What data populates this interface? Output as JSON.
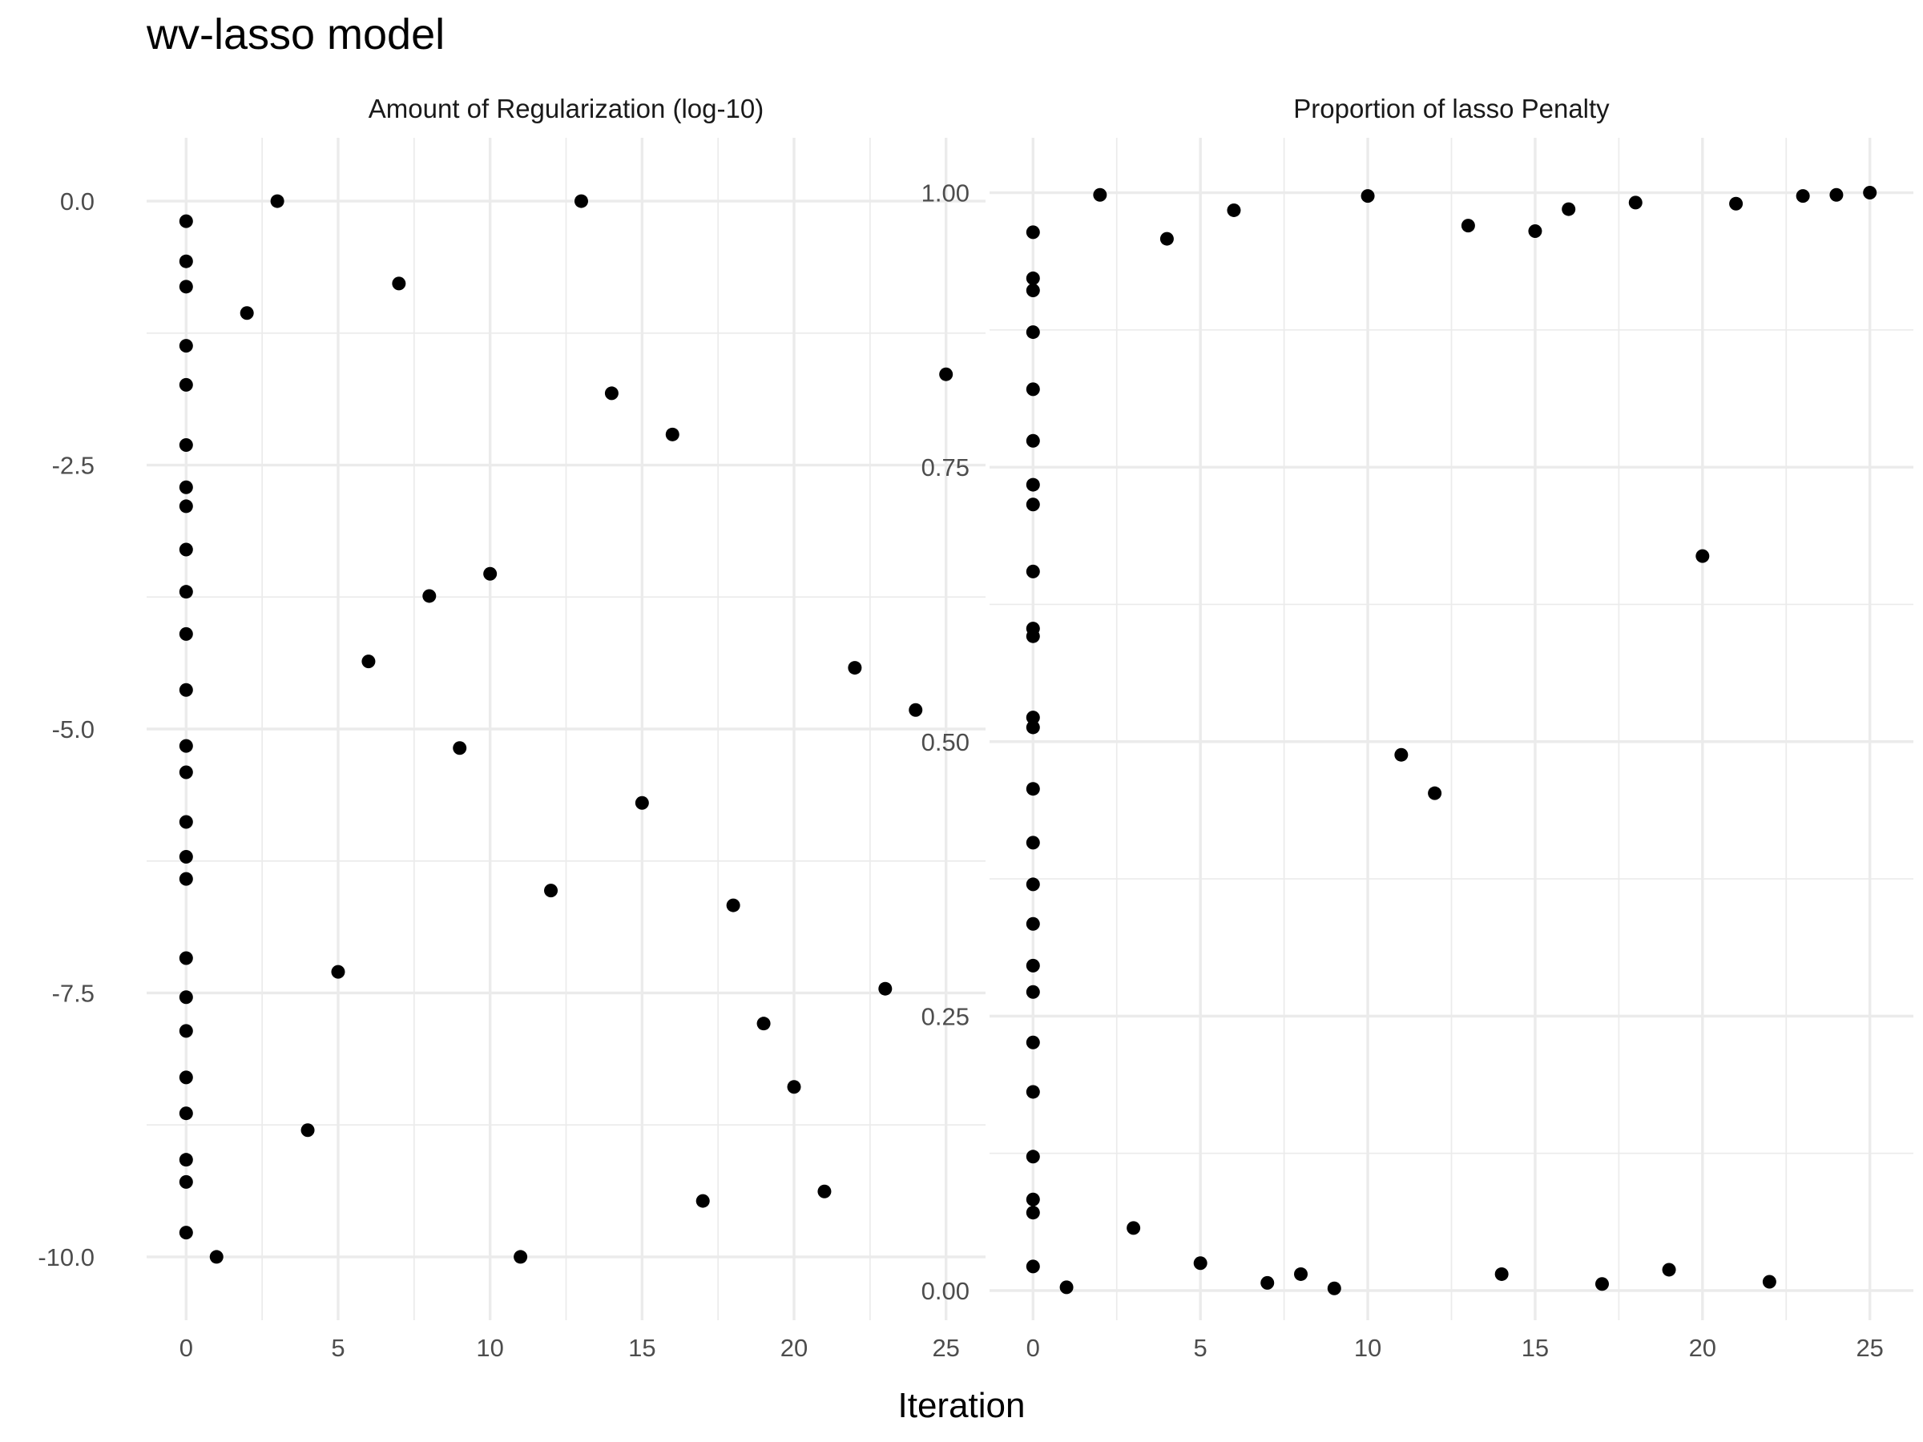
{
  "chart": {
    "title": "wv-lasso model",
    "xlabel": "Iteration"
  },
  "chart_data": [
    {
      "type": "scatter",
      "title": "Amount of Regularization (log-10)",
      "xlabel": "Iteration",
      "xlim": [
        -1.3,
        26.3
      ],
      "ylim": [
        -10.6,
        0.6
      ],
      "xticks": [
        0,
        5,
        10,
        15,
        20,
        25
      ],
      "xtick_labels": [
        "0",
        "5",
        "10",
        "15",
        "20",
        "25"
      ],
      "yticks": [
        0,
        -2.5,
        -5,
        -7.5,
        -10
      ],
      "ytick_labels": [
        "0.0",
        "-2.5",
        "-5.0",
        "-7.5",
        "-10.0"
      ],
      "grid": true,
      "point_color": "#000000",
      "points": [
        [
          0,
          -0.19
        ],
        [
          0,
          -0.57
        ],
        [
          0,
          -0.81
        ],
        [
          0,
          -1.37
        ],
        [
          0,
          -1.74
        ],
        [
          0,
          -2.31
        ],
        [
          0,
          -2.71
        ],
        [
          0,
          -2.89
        ],
        [
          0,
          -3.3
        ],
        [
          0,
          -3.7
        ],
        [
          0,
          -4.1
        ],
        [
          0,
          -4.63
        ],
        [
          0,
          -5.16
        ],
        [
          0,
          -5.41
        ],
        [
          0,
          -5.88
        ],
        [
          0,
          -6.21
        ],
        [
          0,
          -6.42
        ],
        [
          0,
          -7.17
        ],
        [
          0,
          -7.54
        ],
        [
          0,
          -7.86
        ],
        [
          0,
          -8.3
        ],
        [
          0,
          -8.64
        ],
        [
          0,
          -9.08
        ],
        [
          0,
          -9.29
        ],
        [
          0,
          -9.77
        ],
        [
          1,
          -10.0
        ],
        [
          2,
          -1.06
        ],
        [
          3,
          0.0
        ],
        [
          4,
          -8.8
        ],
        [
          5,
          -7.3
        ],
        [
          6,
          -4.36
        ],
        [
          7,
          -0.78
        ],
        [
          8,
          -3.74
        ],
        [
          9,
          -5.18
        ],
        [
          10,
          -3.53
        ],
        [
          11,
          -10.0
        ],
        [
          12,
          -6.53
        ],
        [
          13,
          0.0
        ],
        [
          14,
          -1.82
        ],
        [
          15,
          -5.7
        ],
        [
          16,
          -2.21
        ],
        [
          17,
          -9.47
        ],
        [
          18,
          -6.67
        ],
        [
          19,
          -7.79
        ],
        [
          20,
          -8.39
        ],
        [
          21,
          -9.38
        ],
        [
          22,
          -4.42
        ],
        [
          23,
          -7.46
        ],
        [
          24,
          -4.82
        ],
        [
          25,
          -1.64
        ]
      ]
    },
    {
      "type": "scatter",
      "title": "Proportion of lasso Penalty",
      "xlabel": "Iteration",
      "xlim": [
        -1.3,
        26.3
      ],
      "ylim": [
        -0.027,
        1.05
      ],
      "xticks": [
        0,
        5,
        10,
        15,
        20,
        25
      ],
      "xtick_labels": [
        "0",
        "5",
        "10",
        "15",
        "20",
        "25"
      ],
      "yticks": [
        0,
        0.25,
        0.5,
        0.75,
        1
      ],
      "ytick_labels": [
        "0.00",
        "0.25",
        "0.50",
        "0.75",
        "1.00"
      ],
      "grid": true,
      "point_color": "#000000",
      "points": [
        [
          0,
          0.964
        ],
        [
          0,
          0.922
        ],
        [
          0,
          0.911
        ],
        [
          0,
          0.873
        ],
        [
          0,
          0.821
        ],
        [
          0,
          0.774
        ],
        [
          0,
          0.734
        ],
        [
          0,
          0.716
        ],
        [
          0,
          0.655
        ],
        [
          0,
          0.603
        ],
        [
          0,
          0.596
        ],
        [
          0,
          0.522
        ],
        [
          0,
          0.513
        ],
        [
          0,
          0.457
        ],
        [
          0,
          0.408
        ],
        [
          0,
          0.37
        ],
        [
          0,
          0.334
        ],
        [
          0,
          0.296
        ],
        [
          0,
          0.272
        ],
        [
          0,
          0.226
        ],
        [
          0,
          0.181
        ],
        [
          0,
          0.122
        ],
        [
          0,
          0.083
        ],
        [
          0,
          0.071
        ],
        [
          0,
          0.022
        ],
        [
          1,
          0.003
        ],
        [
          2,
          0.998
        ],
        [
          3,
          0.057
        ],
        [
          4,
          0.958
        ],
        [
          5,
          0.025
        ],
        [
          6,
          0.984
        ],
        [
          7,
          0.007
        ],
        [
          8,
          0.015
        ],
        [
          9,
          0.002
        ],
        [
          10,
          0.997
        ],
        [
          11,
          0.488
        ],
        [
          12,
          0.453
        ],
        [
          13,
          0.97
        ],
        [
          14,
          0.015
        ],
        [
          15,
          0.965
        ],
        [
          16,
          0.985
        ],
        [
          17,
          0.006
        ],
        [
          18,
          0.991
        ],
        [
          19,
          0.019
        ],
        [
          20,
          0.669
        ],
        [
          21,
          0.99
        ],
        [
          22,
          0.008
        ],
        [
          23,
          0.997
        ],
        [
          24,
          0.998
        ],
        [
          25,
          1.0
        ]
      ]
    }
  ]
}
